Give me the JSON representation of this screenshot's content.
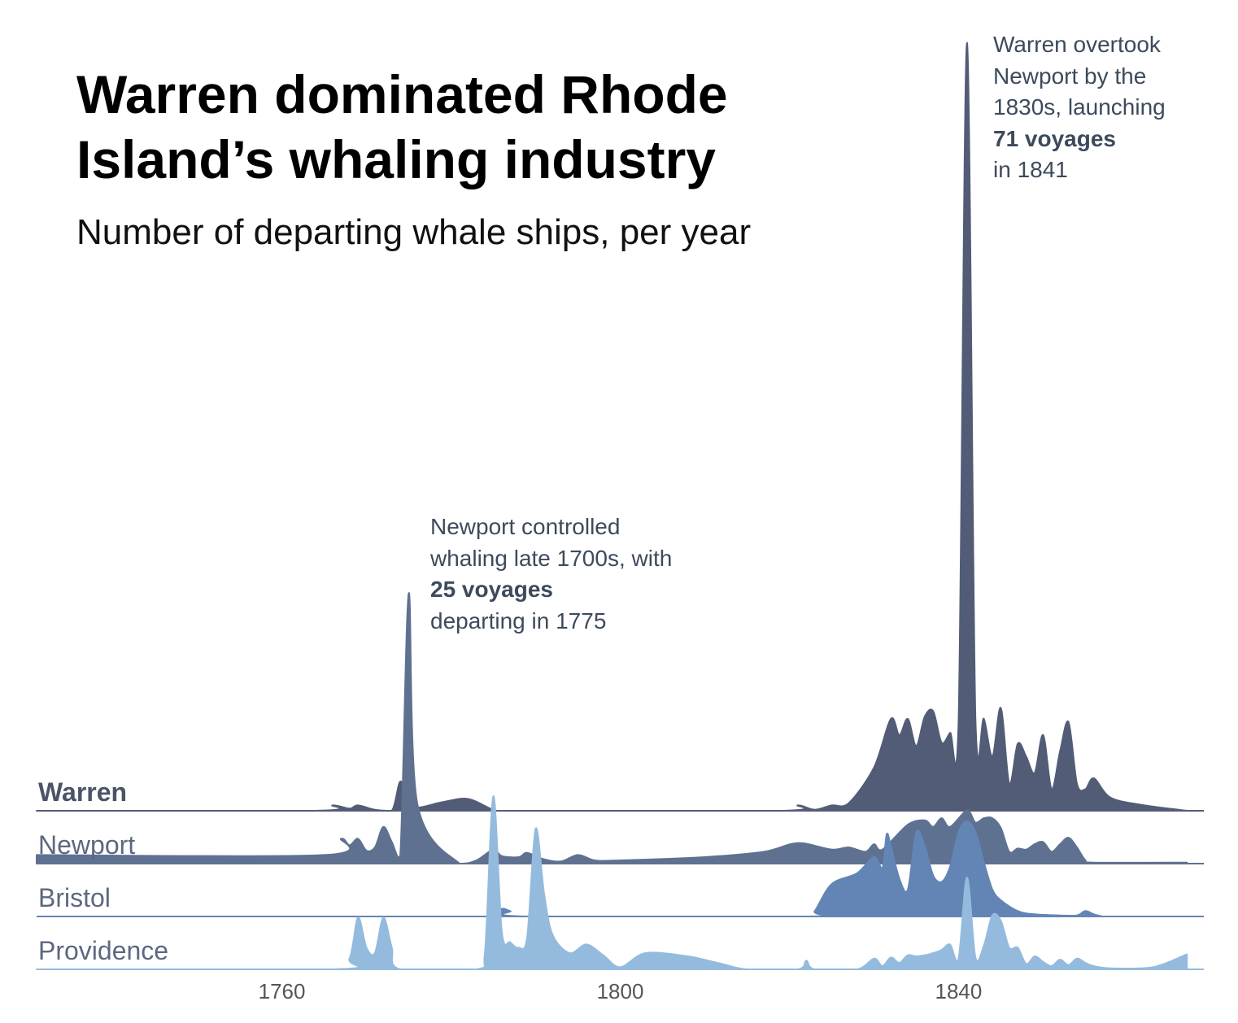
{
  "title": "Warren dominated Rhode Island’s whaling industry",
  "subtitle": "Number of departing whale ships, per year",
  "annotations": {
    "warren": {
      "lines": [
        "Warren overtook",
        "Newport by the",
        "1830s, launching"
      ],
      "bold": "71 voyages",
      "tail": "in 1841"
    },
    "newport": {
      "lines": [
        "Newport controlled",
        "whaling late 1700s, with"
      ],
      "bold": "25 voyages",
      "tail": "departing in 1775"
    }
  },
  "chart_data": {
    "type": "area",
    "chart_form": "ridgeline",
    "x_ticks": [
      1760,
      1800,
      1840
    ],
    "x_range": [
      1731,
      1869
    ],
    "shared_y_scale": true,
    "series": [
      {
        "name": "Warren",
        "label_bold": true,
        "color": "#525c76",
        "points": [
          [
            1731,
            0
          ],
          [
            1764,
            0
          ],
          [
            1766,
            0.5
          ],
          [
            1768,
            0.2
          ],
          [
            1769,
            0.5
          ],
          [
            1771,
            0.1
          ],
          [
            1773,
            0
          ],
          [
            1774,
            2.7
          ],
          [
            1775,
            1.0
          ],
          [
            1776,
            0.3
          ],
          [
            1779,
            0.8
          ],
          [
            1782,
            1.1
          ],
          [
            1785,
            0.1
          ],
          [
            1787,
            0
          ],
          [
            1819,
            0
          ],
          [
            1821,
            0.5
          ],
          [
            1823,
            0.1
          ],
          [
            1825,
            0.5
          ],
          [
            1827,
            0.7
          ],
          [
            1830,
            4
          ],
          [
            1832,
            8.5
          ],
          [
            1833,
            7
          ],
          [
            1834,
            8.5
          ],
          [
            1835,
            6
          ],
          [
            1836,
            8.7
          ],
          [
            1837,
            9.2
          ],
          [
            1838,
            6.3
          ],
          [
            1839,
            7.2
          ],
          [
            1840,
            8
          ],
          [
            1841,
            71
          ],
          [
            1842,
            8.6
          ],
          [
            1843,
            8.5
          ],
          [
            1844,
            5
          ],
          [
            1845,
            9.5
          ],
          [
            1846,
            2.5
          ],
          [
            1847,
            6.2
          ],
          [
            1848,
            5
          ],
          [
            1849,
            3.5
          ],
          [
            1850,
            7
          ],
          [
            1851,
            2
          ],
          [
            1852,
            5.5
          ],
          [
            1853,
            8.2
          ],
          [
            1854,
            2.5
          ],
          [
            1855,
            2
          ],
          [
            1856,
            3
          ],
          [
            1858,
            1.2
          ],
          [
            1862,
            0.5
          ],
          [
            1866,
            0.1
          ],
          [
            1867,
            0
          ]
        ]
      },
      {
        "name": "Newport",
        "label_bold": false,
        "color": "#5f7190",
        "points": [
          [
            1731,
            0.8
          ],
          [
            1765,
            0.8
          ],
          [
            1767,
            2.3
          ],
          [
            1768,
            1.7
          ],
          [
            1769,
            2.3
          ],
          [
            1770,
            1.2
          ],
          [
            1771,
            1.5
          ],
          [
            1772,
            3.4
          ],
          [
            1773,
            2
          ],
          [
            1774,
            0.8
          ],
          [
            1775,
            25
          ],
          [
            1776,
            5.6
          ],
          [
            1781,
            0
          ],
          [
            1783,
            0.3
          ],
          [
            1785,
            1.3
          ],
          [
            1786,
            0.7
          ],
          [
            1788,
            0.6
          ],
          [
            1789,
            1.0
          ],
          [
            1791,
            0.4
          ],
          [
            1793,
            0.2
          ],
          [
            1795,
            0.8
          ],
          [
            1797,
            0.3
          ],
          [
            1800,
            0.3
          ],
          [
            1810,
            0.6
          ],
          [
            1817,
            1.1
          ],
          [
            1821,
            1.9
          ],
          [
            1825,
            1.3
          ],
          [
            1827,
            1.5
          ],
          [
            1829,
            1.1
          ],
          [
            1830,
            1.8
          ],
          [
            1831,
            1.3
          ],
          [
            1834,
            3.6
          ],
          [
            1836,
            4
          ],
          [
            1837,
            3.4
          ],
          [
            1838,
            4.2
          ],
          [
            1839,
            3.4
          ],
          [
            1841,
            4.9
          ],
          [
            1842,
            3.8
          ],
          [
            1843,
            4.2
          ],
          [
            1844,
            4.2
          ],
          [
            1845,
            3.3
          ],
          [
            1846,
            1.1
          ],
          [
            1847,
            1.4
          ],
          [
            1848,
            1.3
          ],
          [
            1849,
            1.8
          ],
          [
            1850,
            2
          ],
          [
            1851,
            1.1
          ],
          [
            1852,
            1.8
          ],
          [
            1853,
            2.4
          ],
          [
            1854,
            1.5
          ],
          [
            1855,
            0.3
          ],
          [
            1856,
            0.1
          ],
          [
            1867,
            0.1
          ]
        ]
      },
      {
        "name": "Bristol",
        "label_bold": false,
        "color": "#6385b5",
        "points": [
          [
            1785,
            0
          ],
          [
            1786,
            0.7
          ],
          [
            1787,
            0.5
          ],
          [
            1789,
            0
          ],
          [
            1822,
            0
          ],
          [
            1823,
            0.5
          ],
          [
            1825,
            3
          ],
          [
            1828,
            4
          ],
          [
            1830,
            5.5
          ],
          [
            1831,
            4.5
          ],
          [
            1831.5,
            7.6
          ],
          [
            1832,
            6.5
          ],
          [
            1833,
            3.5
          ],
          [
            1834,
            2.5
          ],
          [
            1835,
            7.8
          ],
          [
            1836,
            6.5
          ],
          [
            1837,
            3.8
          ],
          [
            1838,
            3.2
          ],
          [
            1839,
            4.6
          ],
          [
            1840,
            7.8
          ],
          [
            1841,
            8.8
          ],
          [
            1842,
            7.8
          ],
          [
            1843,
            5
          ],
          [
            1844,
            2.5
          ],
          [
            1845,
            1.5
          ],
          [
            1847,
            0.5
          ],
          [
            1849,
            0.2
          ],
          [
            1852,
            0.1
          ],
          [
            1854,
            0.1
          ],
          [
            1855,
            0.5
          ],
          [
            1856,
            0.2
          ],
          [
            1857,
            0
          ]
        ]
      },
      {
        "name": "Providence",
        "label_bold": false,
        "color": "#94bbdd",
        "points": [
          [
            1731,
            0
          ],
          [
            1766,
            0
          ],
          [
            1768,
            1
          ],
          [
            1769,
            4.8
          ],
          [
            1770,
            2
          ],
          [
            1771,
            1.5
          ],
          [
            1772,
            4.8
          ],
          [
            1773,
            2
          ],
          [
            1774,
            0
          ],
          [
            1783,
            0
          ],
          [
            1784,
            1.5
          ],
          [
            1785,
            16
          ],
          [
            1786,
            3.5
          ],
          [
            1787,
            2.5
          ],
          [
            1788,
            2
          ],
          [
            1789,
            3
          ],
          [
            1790,
            13
          ],
          [
            1791,
            7
          ],
          [
            1792,
            3.2
          ],
          [
            1794,
            1.5
          ],
          [
            1796,
            2.3
          ],
          [
            1798,
            1.3
          ],
          [
            1800,
            0.2
          ],
          [
            1803,
            1.5
          ],
          [
            1808,
            1.2
          ],
          [
            1812,
            0.5
          ],
          [
            1815,
            0
          ],
          [
            1821,
            0
          ],
          [
            1822,
            0.8
          ],
          [
            1823,
            0
          ],
          [
            1828,
            0
          ],
          [
            1830,
            1
          ],
          [
            1831,
            0.3
          ],
          [
            1832,
            1.1
          ],
          [
            1833,
            0.6
          ],
          [
            1834,
            1.3
          ],
          [
            1835,
            1.2
          ],
          [
            1836,
            1.3
          ],
          [
            1837,
            1.5
          ],
          [
            1838,
            1.8
          ],
          [
            1839,
            2.3
          ],
          [
            1840,
            1
          ],
          [
            1841,
            8.5
          ],
          [
            1842,
            1.1
          ],
          [
            1843,
            2.2
          ],
          [
            1844,
            5
          ],
          [
            1845,
            4.5
          ],
          [
            1846,
            2
          ],
          [
            1847,
            2
          ],
          [
            1848,
            0.5
          ],
          [
            1849,
            1.2
          ],
          [
            1850,
            0.7
          ],
          [
            1851,
            0.3
          ],
          [
            1852,
            0.9
          ],
          [
            1853,
            0.4
          ],
          [
            1854,
            1
          ],
          [
            1855,
            0.6
          ],
          [
            1856,
            0.3
          ],
          [
            1858,
            0.1
          ],
          [
            1863,
            0.2
          ],
          [
            1867,
            1.4
          ]
        ]
      }
    ]
  }
}
